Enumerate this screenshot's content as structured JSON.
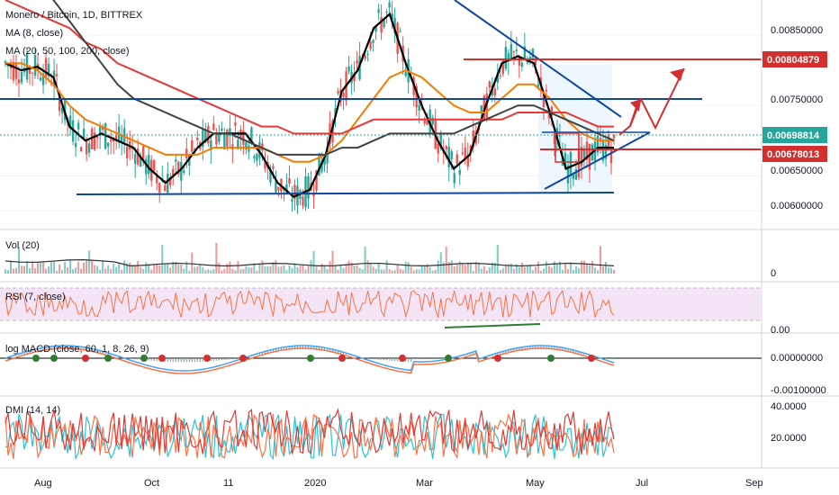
{
  "header": {
    "symbol_line": "Monero / Bitcoin, 1D, BITTREX",
    "ma_line1": "MA (8, close)",
    "ma_line2": "MA (20, 50, 100, 200, close)"
  },
  "panes": {
    "volume_label": "Vol (20)",
    "rsi_label": "RSI (7, close)",
    "macd_label": "log MACD (close, 60, 1, 8, 26, 9)",
    "dmi_label": "DMI (14, 14)"
  },
  "price_tags": {
    "upper": "0.00804879",
    "current": "0.00698814",
    "lower": "0.00678013"
  },
  "colors": {
    "price_up": "#26a69a",
    "price_down": "#ef5350",
    "ma8": "#000000",
    "ma20": "#7b1fa2",
    "ma50": "#f57c00",
    "ma100": "#e53935",
    "ma200": "#424242",
    "blue_line": "#0d47a1",
    "red_line": "#d32f2f",
    "current_tag": "#26a69a",
    "level_tag": "#d32f2f",
    "rsi_band": "#f3e5f5",
    "rsi_line": "#ff7043",
    "macd_line": "#42a5f5",
    "signal_line": "#ff7043",
    "dmi_plus": "#26c6da",
    "dmi_minus": "#ff7043",
    "adx": "#e53935"
  },
  "chart_data": [
    {
      "type": "line",
      "title": "Monero / Bitcoin, 1D, BITTREX",
      "xlabel": "",
      "ylabel": "",
      "x_ticks": [
        "Aug",
        "Oct",
        "11",
        "2020",
        "Mar",
        "May",
        "Jul",
        "Sep"
      ],
      "y_ticks": [
        "0.00850000",
        "0.00750000",
        "0.00650000",
        "0.00600000"
      ],
      "series": [
        {
          "name": "MA (8, close)",
          "values": [
            0.0081,
            0.008,
            0.00805,
            0.0079,
            0.0072,
            0.007,
            0.0071,
            0.007,
            0.0069,
            0.0066,
            0.0064,
            0.0066,
            0.0069,
            0.0071,
            0.0071,
            0.0071,
            0.0068,
            0.0064,
            0.0062,
            0.0063,
            0.0068,
            0.0077,
            0.008,
            0.0086,
            0.0088,
            0.0081,
            0.0075,
            0.007,
            0.0066,
            0.0068,
            0.0075,
            0.0081,
            0.0082,
            0.0081,
            0.0074,
            0.0066,
            0.0067,
            0.0069,
            0.0069
          ]
        },
        {
          "name": "MA (50)",
          "values": [
            0.0081,
            0.0081,
            0.008,
            0.0078,
            0.0075,
            0.0073,
            0.0072,
            0.0071,
            0.007,
            0.0069,
            0.0068,
            0.0068,
            0.0068,
            0.0069,
            0.0069,
            0.0069,
            0.0069,
            0.0068,
            0.0067,
            0.0067,
            0.0068,
            0.007,
            0.0073,
            0.0076,
            0.0079,
            0.008,
            0.0079,
            0.0077,
            0.0075,
            0.0074,
            0.0074,
            0.0076,
            0.0078,
            0.0078,
            0.0076,
            0.0073,
            0.0071,
            0.007,
            0.007
          ]
        },
        {
          "name": "MA (100)",
          "values": [
            0.009,
            0.0089,
            0.0088,
            0.0087,
            0.0086,
            0.0084,
            0.0083,
            0.0081,
            0.008,
            0.0079,
            0.0078,
            0.0077,
            0.0076,
            0.0075,
            0.0074,
            0.0073,
            0.0072,
            0.0072,
            0.0071,
            0.0071,
            0.0071,
            0.0071,
            0.0072,
            0.0073,
            0.0073,
            0.0073,
            0.0073,
            0.0073,
            0.0073,
            0.0073,
            0.0073,
            0.0073,
            0.0074,
            0.0074,
            0.0074,
            0.0074,
            0.0073,
            0.0072,
            0.0072
          ]
        },
        {
          "name": "MA (200)",
          "values": [
            0.0096,
            0.0094,
            0.0092,
            0.009,
            0.0087,
            0.0084,
            0.0081,
            0.0078,
            0.0076,
            0.0075,
            0.0074,
            0.0073,
            0.0072,
            0.0071,
            0.0071,
            0.007,
            0.0069,
            0.0068,
            0.0068,
            0.0068,
            0.0068,
            0.0069,
            0.0069,
            0.007,
            0.0071,
            0.0071,
            0.0071,
            0.0071,
            0.0071,
            0.0072,
            0.0073,
            0.0074,
            0.0075,
            0.0075,
            0.0074,
            0.0073,
            0.0072,
            0.0071,
            0.007
          ]
        }
      ],
      "annotations": {
        "horizontal_support": 0.00618,
        "horizontal_resistance": 0.00749,
        "red_upper_level": 0.00804879,
        "red_lower_level": 0.00678013,
        "current_price": 0.00698814
      }
    },
    {
      "type": "bar",
      "title": "Vol (20)",
      "y_ticks": [
        "0"
      ]
    },
    {
      "type": "line",
      "title": "RSI (7, close)",
      "y_ticks": [
        "0.00"
      ]
    },
    {
      "type": "line",
      "title": "log MACD (close, 60, 1, 8, 26, 9)",
      "y_ticks": [
        "0.00000000",
        "-0.00100000"
      ]
    },
    {
      "type": "line",
      "title": "DMI (14, 14)",
      "y_ticks": [
        "40.0000",
        "20.0000"
      ]
    }
  ]
}
